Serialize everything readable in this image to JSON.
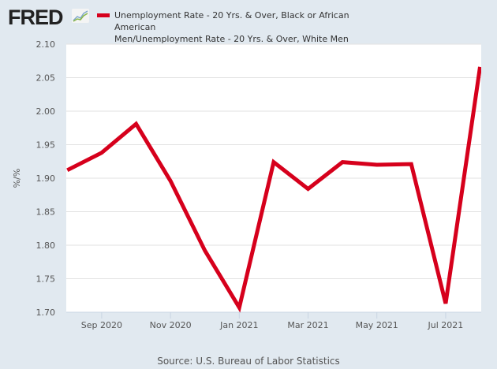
{
  "header": {
    "logo": "FRED",
    "legend_line1": "Unemployment Rate - 20 Yrs. & Over, Black or African American",
    "legend_line2": "Men/Unemployment Rate - 20 Yrs. & Over, White Men"
  },
  "chart_data": {
    "type": "line",
    "title": "Unemployment Rate - 20 Yrs. & Over, Black or African American Men/Unemployment Rate - 20 Yrs. & Over, White Men",
    "ylabel": "%/%",
    "xlabel": "",
    "ylim": [
      1.7,
      2.1
    ],
    "yticks": [
      "1.70",
      "1.75",
      "1.80",
      "1.85",
      "1.90",
      "1.95",
      "2.00",
      "2.05",
      "2.10"
    ],
    "xticks": [
      {
        "index": 1,
        "label": "Sep 2020"
      },
      {
        "index": 3,
        "label": "Nov 2020"
      },
      {
        "index": 5,
        "label": "Jan 2021"
      },
      {
        "index": 7,
        "label": "Mar 2021"
      },
      {
        "index": 9,
        "label": "May 2021"
      },
      {
        "index": 11,
        "label": "Jul 2021"
      }
    ],
    "x": [
      "2020-08",
      "2020-09",
      "2020-10",
      "2020-11",
      "2020-12",
      "2021-01",
      "2021-02",
      "2021-03",
      "2021-04",
      "2021-05",
      "2021-06",
      "2021-07",
      "2021-08"
    ],
    "series": [
      {
        "name": "Unemployment Rate ratio",
        "color": "#d6001c",
        "values": [
          1.912,
          1.938,
          1.981,
          1.896,
          1.792,
          1.707,
          1.924,
          1.884,
          1.924,
          1.92,
          1.921,
          1.713,
          2.066
        ]
      }
    ],
    "grid": true,
    "source": "Source: U.S. Bureau of Labor Statistics"
  }
}
